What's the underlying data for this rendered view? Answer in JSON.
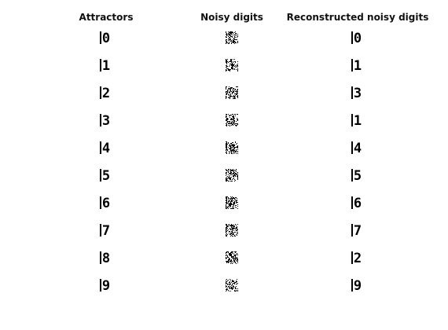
{
  "figure": {
    "columns": [
      {
        "title": "Attractors"
      },
      {
        "title": "Noisy digits"
      },
      {
        "title": "Reconstructed noisy digits"
      }
    ],
    "attractors": [
      "0",
      "1",
      "2",
      "3",
      "4",
      "5",
      "6",
      "7",
      "8",
      "9"
    ],
    "noisy": [
      "0",
      "1",
      "2",
      "3",
      "4",
      "5",
      "6",
      "7",
      "8",
      "9"
    ],
    "reconstructed": [
      "0",
      "1",
      "3",
      "1",
      "4",
      "5",
      "6",
      "7",
      "2",
      "9"
    ],
    "noise_level": 0.35,
    "colors": {
      "ink": "#000000",
      "paper": "#ffffff"
    }
  }
}
